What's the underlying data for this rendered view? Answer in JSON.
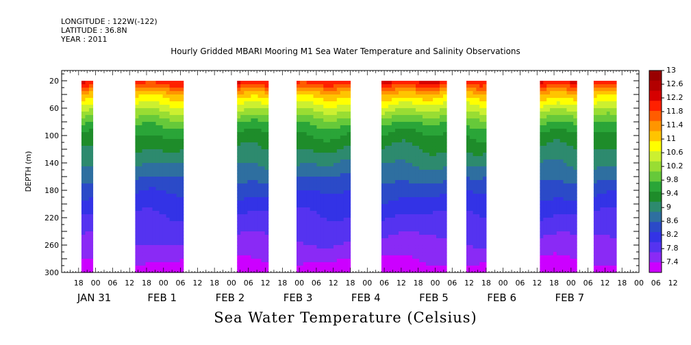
{
  "header": {
    "longitude": "LONGITUDE : 122W(-122)",
    "latitude": "LATITUDE : 36.8N",
    "year": "YEAR : 2011",
    "title": "Hourly Gridded MBARI Mooring M1 Sea Water Temperature and Salinity Observations"
  },
  "chart_data": {
    "type": "heatmap",
    "title": "Hourly Gridded MBARI Mooring M1 Sea Water Temperature and Salinity Observations",
    "xlabel": "",
    "ylabel": "DEPTH (m)",
    "colorbar_label": "Sea Water Temperature (Celsius)",
    "y_inverted": true,
    "ylim": [
      300,
      5
    ],
    "y_ticks": [
      20,
      60,
      100,
      140,
      180,
      220,
      260,
      300
    ],
    "x_unit": "hours since JAN 30 12:00, 2011",
    "xlim": [
      0,
      204
    ],
    "x_hour_ticks": [
      "18",
      "00",
      "06",
      "12",
      "18",
      "00",
      "06",
      "12",
      "18",
      "00",
      "06",
      "12",
      "18",
      "00",
      "06",
      "12",
      "18",
      "00",
      "06",
      "12",
      "18",
      "00",
      "06",
      "12",
      "18",
      "00",
      "06",
      "12",
      "18",
      "00",
      "06",
      "12",
      "18",
      "00",
      "06",
      "12"
    ],
    "x_day_labels": [
      "JAN 31",
      "FEB  1",
      "FEB  2",
      "FEB  3",
      "FEB  4",
      "FEB  5",
      "FEB  6",
      "FEB  7"
    ],
    "colorbar_levels": [
      13,
      12.6,
      12.2,
      11.8,
      11.4,
      11,
      10.6,
      10.2,
      9.8,
      9.4,
      9,
      8.6,
      8.2,
      7.8,
      7.4
    ],
    "colorbar_colors": [
      "#990000",
      "#b30000",
      "#d60000",
      "#ff2000",
      "#ff5c00",
      "#ff9500",
      "#ffc400",
      "#ffff00",
      "#ccf030",
      "#99dd33",
      "#66c93a",
      "#2aa538",
      "#1e8c2a",
      "#2d8a6e",
      "#2e6fa0",
      "#2b4ac8",
      "#3333e6",
      "#5533f0",
      "#8a2af5",
      "#cc00ff"
    ],
    "data_segments_hours": [
      [
        7,
        11
      ],
      [
        26,
        43
      ],
      [
        62,
        73
      ],
      [
        83,
        102
      ],
      [
        113,
        136
      ],
      [
        143,
        150
      ],
      [
        169,
        182
      ],
      [
        188,
        196
      ]
    ],
    "depth_profile_typical": [
      {
        "depth": 20,
        "temperature": 12.2
      },
      {
        "depth": 40,
        "temperature": 11.2
      },
      {
        "depth": 60,
        "temperature": 10.6
      },
      {
        "depth": 80,
        "temperature": 10.0
      },
      {
        "depth": 100,
        "temperature": 9.6
      },
      {
        "depth": 140,
        "temperature": 9.1
      },
      {
        "depth": 180,
        "temperature": 8.6
      },
      {
        "depth": 220,
        "temperature": 8.2
      },
      {
        "depth": 260,
        "temperature": 7.9
      },
      {
        "depth": 300,
        "temperature": 7.5
      }
    ]
  }
}
